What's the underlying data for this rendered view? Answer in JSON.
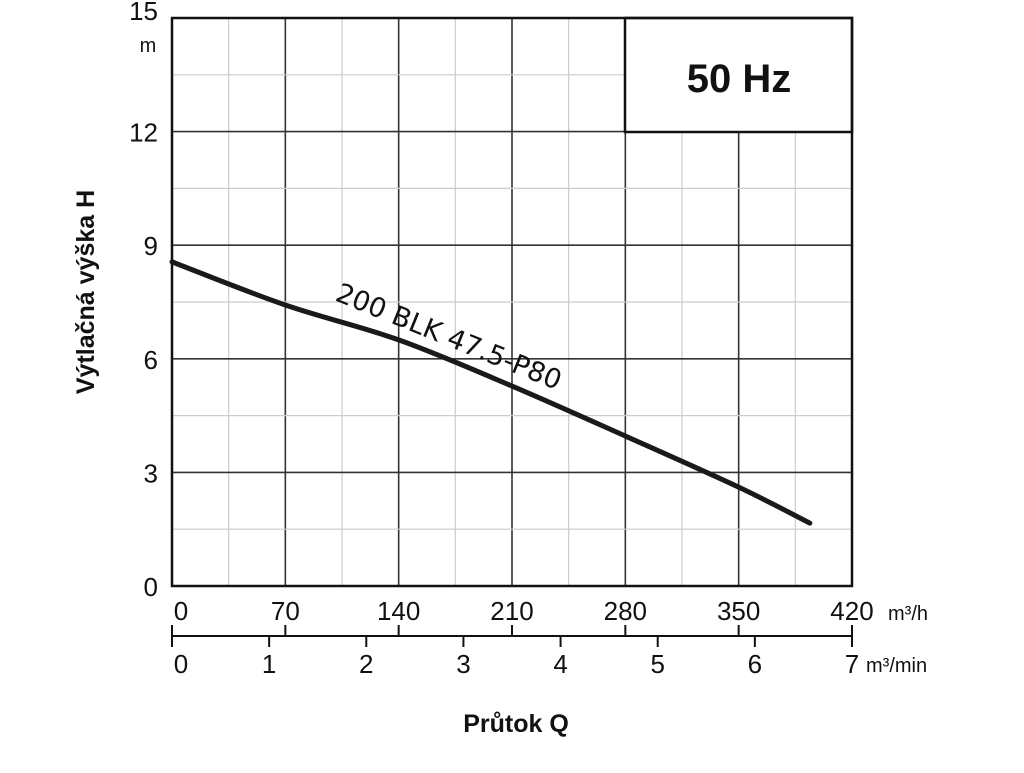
{
  "chart_data": {
    "type": "line",
    "title": "",
    "frequency_label": "50 Hz",
    "ylabel": "Výtlačná výška H",
    "yunit": "m",
    "xlabel": "Průtok Q",
    "xunit_primary": "m³/h",
    "xunit_secondary": "m³/min",
    "xlim": [
      0,
      420
    ],
    "ylim": [
      0,
      15
    ],
    "grid": true,
    "x_ticks": [
      0,
      70,
      140,
      210,
      280,
      350,
      420
    ],
    "x_ticks_secondary": [
      0,
      1,
      2,
      3,
      4,
      5,
      6,
      7
    ],
    "y_ticks": [
      0,
      3,
      6,
      9,
      12,
      15
    ],
    "series": [
      {
        "name": "200 BLK 47.5-P80",
        "x": [
          0,
          70,
          140,
          210,
          280,
          350,
          394
        ],
        "y": [
          8.56,
          7.42,
          6.5,
          5.28,
          3.96,
          2.61,
          1.66
        ]
      }
    ]
  }
}
